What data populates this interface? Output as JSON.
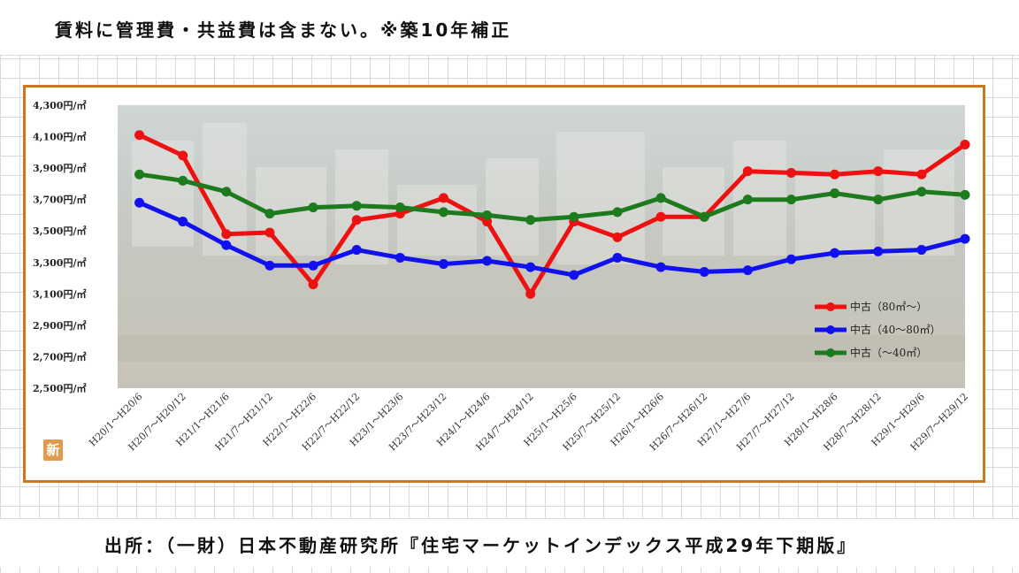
{
  "header": {
    "note": "賃料に管理費・共益費は含まない。※築10年補正"
  },
  "footer": {
    "source": "出所：（一財）日本不動産研究所『住宅マーケットインデックス平成29年下期版』"
  },
  "badge": {
    "label": "新"
  },
  "colors": {
    "frame": "#c8791e",
    "red": "#ee1111",
    "blue": "#1111ee",
    "green": "#1d7a1d"
  },
  "chart_data": {
    "type": "line",
    "title": "",
    "xlabel": "",
    "ylabel": "",
    "ylim": [
      2500,
      4300
    ],
    "yticks": [
      {
        "value": 4300,
        "label": "4,300円/㎡"
      },
      {
        "value": 4100,
        "label": "4,100円/㎡"
      },
      {
        "value": 3900,
        "label": "3,900円/㎡"
      },
      {
        "value": 3700,
        "label": "3,700円/㎡"
      },
      {
        "value": 3500,
        "label": "3,500円/㎡"
      },
      {
        "value": 3300,
        "label": "3,300円/㎡"
      },
      {
        "value": 3100,
        "label": "3,100円/㎡"
      },
      {
        "value": 2900,
        "label": "2,900円/㎡"
      },
      {
        "value": 2700,
        "label": "2,700円/㎡"
      },
      {
        "value": 2500,
        "label": "2,500円/㎡"
      }
    ],
    "categories": [
      "H20/1～H20/6",
      "H20/7～H20/12",
      "H21/1～H21/6",
      "H21/7～H21/12",
      "H22/1～H22/6",
      "H22/7～H22/12",
      "H23/1～H23/6",
      "H23/7～H23/12",
      "H24/1～H24/6",
      "H24/7～H24/12",
      "H25/1～H25/6",
      "H25/7～H25/12",
      "H26/1～H26/6",
      "H26/7～H26/12",
      "H27/1～H27/6",
      "H27/7～H27/12",
      "H28/1～H28/6",
      "H28/7～H28/12",
      "H29/1～H29/6",
      "H29/7～H29/12"
    ],
    "series": [
      {
        "name": "中古（80㎡～）",
        "color": "#ee1111",
        "values": [
          4110,
          3980,
          3480,
          3490,
          3160,
          3570,
          3610,
          3710,
          3560,
          3100,
          3560,
          3460,
          3590,
          3590,
          3880,
          3870,
          3860,
          3880,
          3860,
          4050
        ]
      },
      {
        "name": "中古（40～80㎡）",
        "color": "#1111ee",
        "values": [
          3680,
          3560,
          3410,
          3280,
          3280,
          3380,
          3330,
          3290,
          3310,
          3270,
          3220,
          3330,
          3270,
          3240,
          3250,
          3320,
          3360,
          3370,
          3380,
          3450
        ]
      },
      {
        "name": "中古（～40㎡）",
        "color": "#1d7a1d",
        "values": [
          3860,
          3820,
          3750,
          3610,
          3650,
          3660,
          3650,
          3620,
          3600,
          3570,
          3590,
          3620,
          3710,
          3590,
          3700,
          3700,
          3740,
          3700,
          3750,
          3730
        ]
      }
    ],
    "legend_position": "right"
  }
}
